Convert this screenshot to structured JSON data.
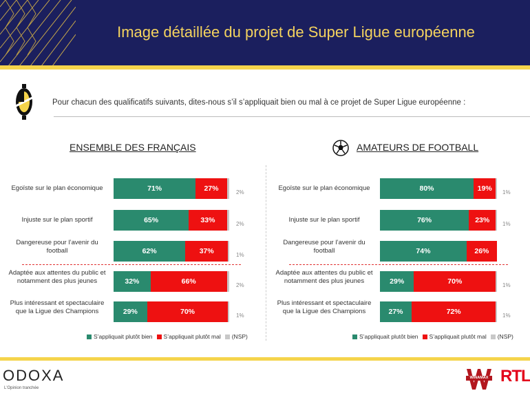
{
  "header": {
    "title": "Image détaillée du projet de Super Ligue européenne"
  },
  "question": "Pour chacun des qualificatifs suivants, dites-nous s’il s’appliquait bien ou mal à ce projet de Super Ligue européenne :",
  "colors": {
    "bien": "#2a8a6e",
    "mal": "#ee1111",
    "nsp": "#c8c8c8",
    "navy": "#1b1f5e",
    "yellow": "#f5d44b"
  },
  "chart_data": [
    {
      "type": "bar",
      "stacked": true,
      "orientation": "horizontal",
      "title": "ENSEMBLE DES FRANÇAIS",
      "categories": [
        "Egoïste sur le plan économique",
        "Injuste sur le plan sportif",
        "Dangereuse pour l’avenir du football",
        "Adaptée aux attentes du public et notamment des plus jeunes",
        "Plus intéressant et spectaculaire que la Ligue des Champions"
      ],
      "series": [
        {
          "name": "S’appliquait plutôt bien",
          "values": [
            71,
            65,
            62,
            32,
            29
          ]
        },
        {
          "name": "S’appliquait plutôt mal",
          "values": [
            27,
            33,
            37,
            66,
            70
          ]
        },
        {
          "name": "(NSP)",
          "values": [
            2,
            2,
            1,
            2,
            1
          ]
        }
      ],
      "xlim": [
        0,
        100
      ]
    },
    {
      "type": "bar",
      "stacked": true,
      "orientation": "horizontal",
      "title": "AMATEURS DE FOOTBALL",
      "categories": [
        "Egoïste sur le plan économique",
        "Injuste sur le plan sportif",
        "Dangereuse pour l’avenir du football",
        "Adaptée aux attentes du public et notamment des plus jeunes",
        "Plus intéressant et spectaculaire que la Ligue des Champions"
      ],
      "series": [
        {
          "name": "S’appliquait plutôt bien",
          "values": [
            80,
            76,
            74,
            29,
            27
          ]
        },
        {
          "name": "S’appliquait plutôt mal",
          "values": [
            19,
            23,
            26,
            70,
            72
          ]
        },
        {
          "name": "(NSP)",
          "values": [
            1,
            1,
            null,
            1,
            1
          ]
        }
      ],
      "xlim": [
        0,
        100
      ]
    }
  ],
  "footer": {
    "brand": "ODOXA",
    "tagline": "L'Opinion tranchée",
    "partner1": "WINAMAX",
    "partner2": "RTL"
  }
}
